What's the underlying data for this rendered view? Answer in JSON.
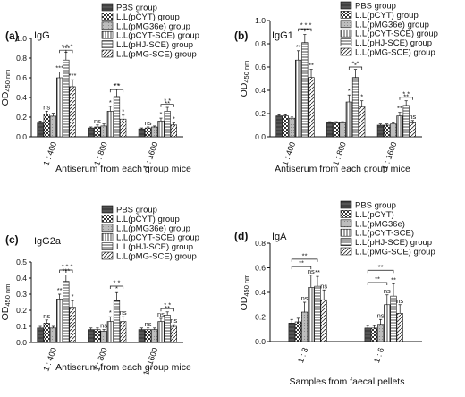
{
  "colors": {
    "ink": "#111111",
    "bar_dark": "#444444",
    "bar_mid": "#9a9a9a",
    "bar_light": "#e6e6e6"
  },
  "chart_data": [
    {
      "type": "bar",
      "panel": "(a)",
      "title": "IgG",
      "ylabel": "OD450 nm",
      "ylabel_main": "OD",
      "ylabel_sub": "450 nm",
      "xlabel": "Antiserum from each group mice",
      "ylim": [
        0,
        1.0
      ],
      "yticks": [
        "0.0",
        "0.2",
        "0.4",
        "0.6",
        "0.8",
        "1.0"
      ],
      "categories": [
        "1 : 400",
        "1 : 800",
        "1 : 1600"
      ],
      "series": [
        {
          "name": "PBS group",
          "values": [
            0.14,
            0.09,
            0.08
          ],
          "errors": [
            0.02,
            0.01,
            0.01
          ],
          "sig": [
            "",
            "",
            ""
          ]
        },
        {
          "name": "L.L(pCYT) group",
          "values": [
            0.23,
            0.1,
            0.09
          ],
          "errors": [
            0.03,
            0.02,
            0.01
          ],
          "sig": [
            "ns",
            "ns",
            "ns"
          ]
        },
        {
          "name": "L.L(pMG36e) group",
          "values": [
            0.21,
            0.11,
            0.1
          ],
          "errors": [
            0.03,
            0.02,
            0.01
          ],
          "sig": [
            "",
            "",
            ""
          ]
        },
        {
          "name": "L.L(pCYT-SCE) group",
          "values": [
            0.6,
            0.26,
            0.16
          ],
          "errors": [
            0.06,
            0.05,
            0.03
          ],
          "sig": [
            "***",
            "*",
            "*"
          ]
        },
        {
          "name": "L.L(pHJ-SCE) group",
          "values": [
            0.78,
            0.41,
            0.26
          ],
          "errors": [
            0.08,
            0.07,
            0.04
          ],
          "sig": [
            "***",
            "**",
            "**"
          ]
        },
        {
          "name": "L.L(pMG-SCE) group",
          "values": [
            0.51,
            0.18,
            0.12
          ],
          "errors": [
            0.07,
            0.04,
            0.02
          ],
          "sig": [
            "***",
            "*",
            "*"
          ]
        }
      ],
      "brackets": [
        {
          "label": "*",
          "level": 0.88
        },
        {
          "label": "* *",
          "level": 0.88
        },
        {
          "label": "* *",
          "level": 0.48
        },
        {
          "label": "* *",
          "level": 0.33
        }
      ]
    },
    {
      "type": "bar",
      "panel": "(b)",
      "title": "IgG1",
      "ylabel": "OD450 nm",
      "ylabel_main": "OD",
      "ylabel_sub": "450 nm",
      "xlabel": "Antiserum from each group mice",
      "ylim": [
        0,
        1.0
      ],
      "yticks": [
        "0.0",
        "0.2",
        "0.4",
        "0.6",
        "0.8",
        "1.0"
      ],
      "categories": [
        "1 : 400",
        "1 : 800",
        "1 : 1600"
      ],
      "series": [
        {
          "name": "PBS group",
          "values": [
            0.18,
            0.12,
            0.1
          ],
          "errors": [
            0.01,
            0.01,
            0.01
          ],
          "sig": [
            "",
            "",
            ""
          ]
        },
        {
          "name": "L.L(pCYT) group",
          "values": [
            0.18,
            0.12,
            0.1
          ],
          "errors": [
            0.01,
            0.01,
            0.01
          ],
          "sig": [
            "",
            "",
            ""
          ]
        },
        {
          "name": "L.L(pMG36e) group",
          "values": [
            0.16,
            0.12,
            0.11
          ],
          "errors": [
            0.01,
            0.01,
            0.01
          ],
          "sig": [
            "",
            "",
            ""
          ]
        },
        {
          "name": "L.L(pCYT-SCE) group",
          "values": [
            0.66,
            0.3,
            0.18
          ],
          "errors": [
            0.08,
            0.06,
            0.03
          ],
          "sig": [
            "**",
            "*",
            "**"
          ]
        },
        {
          "name": "L.L(pHJ-SCE) group",
          "values": [
            0.81,
            0.51,
            0.27
          ],
          "errors": [
            0.07,
            0.07,
            0.04
          ],
          "sig": [
            "***",
            "*",
            "**"
          ]
        },
        {
          "name": "L.L(pMG-SCE) group",
          "values": [
            0.51,
            0.26,
            0.12
          ],
          "errors": [
            0.07,
            0.05,
            0.02
          ],
          "sig": [
            "**",
            "*",
            "ns"
          ]
        }
      ],
      "brackets": [
        {
          "label": "*",
          "level": 0.93
        },
        {
          "label": "* *",
          "level": 0.93
        },
        {
          "label": "* *",
          "level": 0.6
        },
        {
          "label": "* *",
          "level": 0.34
        }
      ]
    },
    {
      "type": "bar",
      "panel": "(c)",
      "title": "IgG2a",
      "ylabel": "OD450 nm",
      "ylabel_main": "OD",
      "ylabel_sub": "450 nm",
      "xlabel": "Antiserum from each group mice",
      "ylim": [
        0,
        0.5
      ],
      "yticks": [
        "0.0",
        "0.1",
        "0.2",
        "0.3",
        "0.4",
        "0.5"
      ],
      "categories": [
        "1 : 400",
        "1 : 800",
        "1 : 1600"
      ],
      "series": [
        {
          "name": "PBS group",
          "values": [
            0.09,
            0.08,
            0.08
          ],
          "errors": [
            0.01,
            0.01,
            0.01
          ],
          "sig": [
            "",
            "",
            ""
          ]
        },
        {
          "name": "L.L(pCYT) group",
          "values": [
            0.12,
            0.08,
            0.08
          ],
          "errors": [
            0.02,
            0.01,
            0.01
          ],
          "sig": [
            "ns",
            "",
            "ns"
          ]
        },
        {
          "name": "L.L(pMG36e) group",
          "values": [
            0.09,
            0.07,
            0.08
          ],
          "errors": [
            0.01,
            0.01,
            0.01
          ],
          "sig": [
            "",
            "ns",
            ""
          ]
        },
        {
          "name": "L.L(pCYT-SCE) group",
          "values": [
            0.27,
            0.13,
            0.13
          ],
          "errors": [
            0.03,
            0.03,
            0.02
          ],
          "sig": [
            "**",
            "*",
            "ns"
          ]
        },
        {
          "name": "L.L(pHJ-SCE) group",
          "values": [
            0.38,
            0.26,
            0.17
          ],
          "errors": [
            0.04,
            0.05,
            0.02
          ],
          "sig": [
            "***",
            "*",
            "**"
          ]
        },
        {
          "name": "L.L(pMG-SCE) group",
          "values": [
            0.22,
            0.13,
            0.1
          ],
          "errors": [
            0.04,
            0.03,
            0.01
          ],
          "sig": [
            "*",
            "ns",
            "ns"
          ]
        }
      ],
      "brackets": [
        {
          "label": "*",
          "level": 0.45
        },
        {
          "label": "* *",
          "level": 0.45
        },
        {
          "label": "* *",
          "level": 0.35
        },
        {
          "label": "* *",
          "level": 0.21
        }
      ]
    },
    {
      "type": "bar",
      "panel": "(d)",
      "title": "IgA",
      "ylabel": "OD450 nm",
      "ylabel_main": "OD",
      "ylabel_sub": "450 nm",
      "xlabel": "Samples from faecal pellets",
      "ylim": [
        0,
        0.8
      ],
      "yticks": [
        "0.0",
        "0.2",
        "0.4",
        "0.6",
        "0.8"
      ],
      "categories": [
        "1 : 3",
        "1 : 6"
      ],
      "series": [
        {
          "name": "PBS group",
          "values": [
            0.15,
            0.11
          ],
          "errors": [
            0.03,
            0.02
          ],
          "sig": [
            "",
            ""
          ]
        },
        {
          "name": "L.L(pCYT)",
          "values": [
            0.16,
            0.11
          ],
          "errors": [
            0.03,
            0.02
          ],
          "sig": [
            "",
            ""
          ]
        },
        {
          "name": "L.L(pMG36e)",
          "values": [
            0.24,
            0.14
          ],
          "errors": [
            0.08,
            0.04
          ],
          "sig": [
            "ns",
            "ns"
          ]
        },
        {
          "name": "L.L(pCYT-SCE)",
          "values": [
            0.44,
            0.3
          ],
          "errors": [
            0.1,
            0.08
          ],
          "sig": [
            "ns",
            "ns"
          ]
        },
        {
          "name": "L.L(pHJ-SCE) group",
          "values": [
            0.45,
            0.37
          ],
          "errors": [
            0.08,
            0.1
          ],
          "sig": [
            "**",
            "**"
          ]
        },
        {
          "name": "L.L(pMG-SCE) group",
          "values": [
            0.34,
            0.23
          ],
          "errors": [
            0.08,
            0.07
          ],
          "sig": [
            "ns",
            "ns"
          ]
        }
      ],
      "brackets": [
        {
          "label": "**",
          "cat": 0,
          "from": 0,
          "to": 4,
          "level": 0.67
        },
        {
          "label": "**",
          "cat": 0,
          "from": 0,
          "to": 3,
          "level": 0.61
        },
        {
          "label": "**",
          "cat": 1,
          "from": 0,
          "to": 4,
          "level": 0.58
        },
        {
          "label": "**",
          "cat": 1,
          "from": 0,
          "to": 3,
          "level": 0.48
        }
      ]
    }
  ]
}
